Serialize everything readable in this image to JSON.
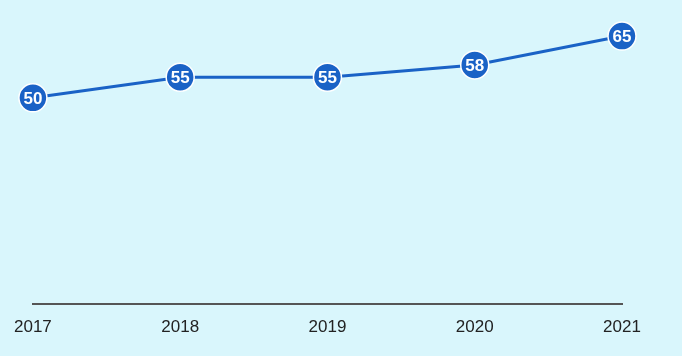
{
  "chart_data": {
    "type": "line",
    "categories": [
      "2017",
      "2018",
      "2019",
      "2020",
      "2021"
    ],
    "values": [
      50,
      55,
      55,
      58,
      65
    ],
    "color": "#1a62c6",
    "marker": "circle",
    "ylim": [
      0,
      70
    ],
    "grid": false,
    "data_labels": true,
    "tick_labels": "x"
  }
}
